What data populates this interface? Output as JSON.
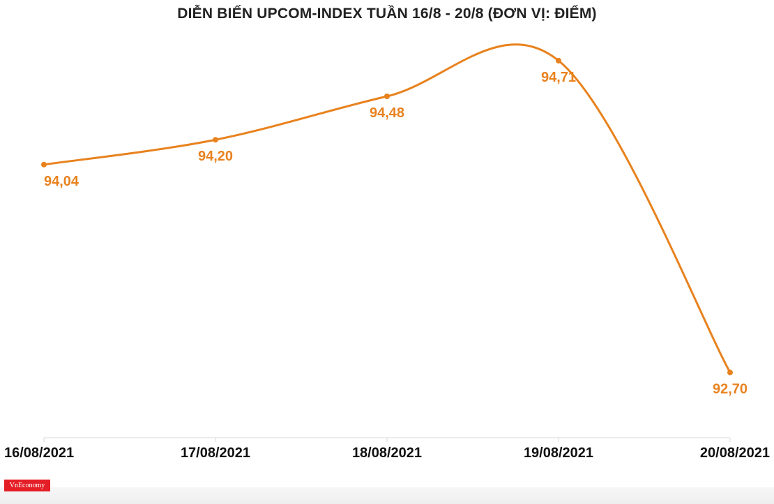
{
  "title": "DIỄN BIẾN UPCOM-INDEX TUẦN 16/8 - 20/8 (ĐƠN VỊ: ĐIỂM)",
  "brand": "VnEconomy",
  "colors": {
    "series": "#e8821e",
    "axis": "#d9d9d9",
    "text": "#111111"
  },
  "chart_data": {
    "type": "line",
    "title": "DIỄN BIẾN UPCOM-INDEX TUẦN 16/8 - 20/8 (ĐƠN VỊ: ĐIỂM)",
    "categories": [
      "16/08/2021",
      "17/08/2021",
      "18/08/2021",
      "19/08/2021",
      "20/08/2021"
    ],
    "values": [
      94.04,
      94.2,
      94.48,
      94.71,
      92.7
    ],
    "data_labels": [
      "94,04",
      "94,20",
      "94,48",
      "94,71",
      "92,70"
    ],
    "xlabel": "",
    "ylabel": "",
    "ylim": [
      92.5,
      94.75
    ],
    "grid": false,
    "legend": "none",
    "smooth": true
  }
}
